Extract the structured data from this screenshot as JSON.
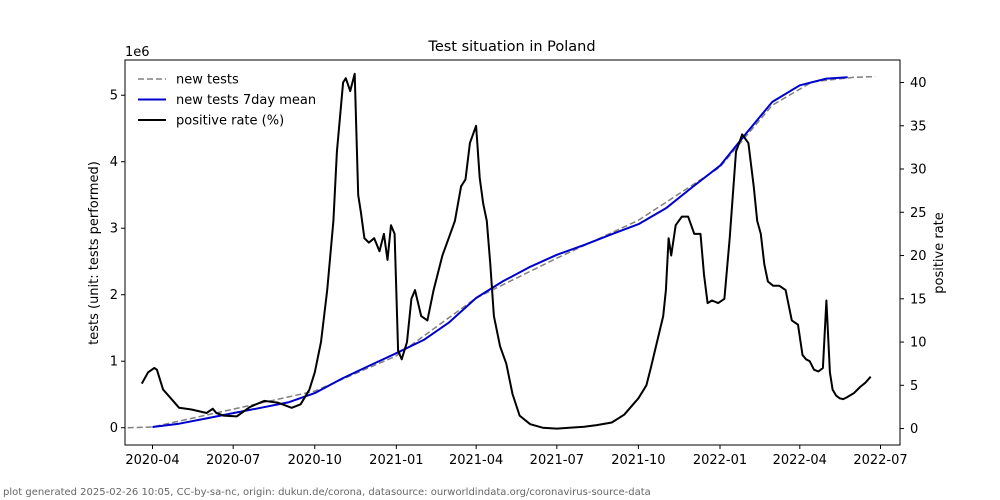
{
  "chart_data": {
    "type": "line",
    "title": "Test situation in Poland",
    "xlabel": "",
    "ylabel": "tests (unit: tests performed)",
    "y_scale_label": "1e6",
    "y2label": "positive rate",
    "xlim": [
      "2020-03-01",
      "2022-07-23"
    ],
    "ylim": [
      -0.26,
      5.53
    ],
    "y2lim": [
      -1.9,
      42.6
    ],
    "x_ticks": [
      "2020-04",
      "2020-07",
      "2020-10",
      "2021-01",
      "2021-04",
      "2021-07",
      "2021-10",
      "2022-01",
      "2022-04",
      "2022-07"
    ],
    "y_ticks": [
      0,
      1,
      2,
      3,
      4,
      5
    ],
    "y2_ticks": [
      0,
      5,
      10,
      15,
      20,
      25,
      30,
      35,
      40
    ],
    "legend_position": "top-left",
    "series": [
      {
        "name": "new tests",
        "axis": "left",
        "color": "#808080",
        "style": "dashed",
        "x": [
          "2020-03-04",
          "2020-04-01",
          "2020-10-01",
          "2021-01-01",
          "2021-04-01",
          "2021-07-01",
          "2021-10-01",
          "2022-01-01",
          "2022-03-01",
          "2022-04-15",
          "2022-06-01",
          "2022-06-25"
        ],
        "values": [
          0.0,
          0.01,
          0.55,
          1.08,
          1.95,
          2.55,
          3.12,
          3.92,
          4.85,
          5.2,
          5.27,
          5.28
        ]
      },
      {
        "name": "new tests 7day mean",
        "axis": "left",
        "color": "#0000cc",
        "style": "solid",
        "x": [
          "2020-04-01",
          "2020-05-01",
          "2020-06-01",
          "2020-07-01",
          "2020-08-01",
          "2020-09-01",
          "2020-10-01",
          "2020-11-01",
          "2020-12-01",
          "2021-01-01",
          "2021-02-01",
          "2021-03-01",
          "2021-04-01",
          "2021-05-01",
          "2021-06-01",
          "2021-07-01",
          "2021-08-01",
          "2021-09-01",
          "2021-10-01",
          "2021-11-01",
          "2021-12-01",
          "2022-01-01",
          "2022-02-01",
          "2022-03-01",
          "2022-04-01",
          "2022-05-01",
          "2022-05-25"
        ],
        "values": [
          0.01,
          0.06,
          0.14,
          0.22,
          0.3,
          0.38,
          0.52,
          0.74,
          0.93,
          1.12,
          1.32,
          1.58,
          1.95,
          2.2,
          2.42,
          2.6,
          2.75,
          2.91,
          3.06,
          3.3,
          3.62,
          3.94,
          4.45,
          4.9,
          5.15,
          5.25,
          5.27
        ]
      },
      {
        "name": "positive rate (%)",
        "axis": "right",
        "color": "#000000",
        "style": "solid",
        "x": [
          "2020-03-20",
          "2020-03-27",
          "2020-04-03",
          "2020-04-06",
          "2020-04-13",
          "2020-04-20",
          "2020-05-01",
          "2020-05-15",
          "2020-06-01",
          "2020-06-08",
          "2020-06-12",
          "2020-06-20",
          "2020-07-05",
          "2020-07-20",
          "2020-08-05",
          "2020-08-20",
          "2020-09-05",
          "2020-09-15",
          "2020-09-25",
          "2020-10-01",
          "2020-10-08",
          "2020-10-15",
          "2020-10-22",
          "2020-10-26",
          "2020-11-02",
          "2020-11-05",
          "2020-11-10",
          "2020-11-15",
          "2020-11-19",
          "2020-11-22",
          "2020-11-26",
          "2020-12-01",
          "2020-12-07",
          "2020-12-13",
          "2020-12-18",
          "2020-12-22",
          "2020-12-26",
          "2020-12-30",
          "2021-01-03",
          "2021-01-07",
          "2021-01-13",
          "2021-01-18",
          "2021-01-22",
          "2021-01-29",
          "2021-02-05",
          "2021-02-12",
          "2021-02-22",
          "2021-03-01",
          "2021-03-08",
          "2021-03-15",
          "2021-03-20",
          "2021-03-25",
          "2021-04-01",
          "2021-04-05",
          "2021-04-09",
          "2021-04-13",
          "2021-04-17",
          "2021-04-21",
          "2021-04-28",
          "2021-05-05",
          "2021-05-12",
          "2021-05-20",
          "2021-06-01",
          "2021-06-15",
          "2021-07-01",
          "2021-07-15",
          "2021-08-01",
          "2021-08-15",
          "2021-09-01",
          "2021-09-15",
          "2021-10-01",
          "2021-10-10",
          "2021-10-15",
          "2021-10-22",
          "2021-10-29",
          "2021-11-01",
          "2021-11-04",
          "2021-11-07",
          "2021-11-12",
          "2021-11-19",
          "2021-11-26",
          "2021-12-03",
          "2021-12-10",
          "2021-12-14",
          "2021-12-18",
          "2021-12-23",
          "2021-12-30",
          "2022-01-06",
          "2022-01-12",
          "2022-01-19",
          "2022-01-26",
          "2022-02-02",
          "2022-02-08",
          "2022-02-12",
          "2022-02-16",
          "2022-02-20",
          "2022-02-24",
          "2022-03-02",
          "2022-03-09",
          "2022-03-16",
          "2022-03-23",
          "2022-03-30",
          "2022-04-04",
          "2022-04-08",
          "2022-04-12",
          "2022-04-17",
          "2022-04-22",
          "2022-04-27",
          "2022-05-01",
          "2022-05-05",
          "2022-05-08",
          "2022-05-12",
          "2022-05-16",
          "2022-05-20",
          "2022-05-24",
          "2022-06-01",
          "2022-06-08",
          "2022-06-14",
          "2022-06-20"
        ],
        "values": [
          5.2,
          6.5,
          7.0,
          6.8,
          4.5,
          3.7,
          2.4,
          2.2,
          1.8,
          2.3,
          1.8,
          1.5,
          1.4,
          2.5,
          3.2,
          3.0,
          2.4,
          2.8,
          4.5,
          6.5,
          10,
          16,
          24,
          32,
          40,
          40.5,
          39,
          41,
          27,
          25,
          22,
          21.5,
          22,
          20.5,
          22.5,
          19.5,
          23.5,
          22.5,
          9,
          8,
          10,
          15,
          16,
          13,
          12.5,
          16,
          20,
          22,
          24,
          28,
          28.8,
          33,
          35,
          29,
          26,
          24,
          19,
          13,
          9.5,
          7.5,
          4,
          1.5,
          0.5,
          0.1,
          0,
          0.1,
          0.2,
          0.4,
          0.7,
          1.6,
          3.5,
          5,
          7,
          10,
          13,
          16,
          22,
          20,
          23.5,
          24.5,
          24.5,
          22.5,
          22.5,
          17.8,
          14.5,
          14.8,
          14.5,
          15,
          22,
          32,
          34,
          33,
          28,
          24,
          22.5,
          19,
          17,
          16.5,
          16.5,
          16,
          12.5,
          12,
          8.5,
          8,
          7.8,
          6.8,
          6.6,
          7,
          14.8,
          6.5,
          4.5,
          3.8,
          3.5,
          3.4,
          3.6,
          4.1,
          4.8,
          5.3,
          6.0
        ]
      }
    ]
  },
  "footer": {
    "text": "plot generated 2025-02-26 10:05, CC-by-sa-nc, origin: dukun.de/corona, datasource: ourworldindata.org/coronavirus-source-data"
  }
}
